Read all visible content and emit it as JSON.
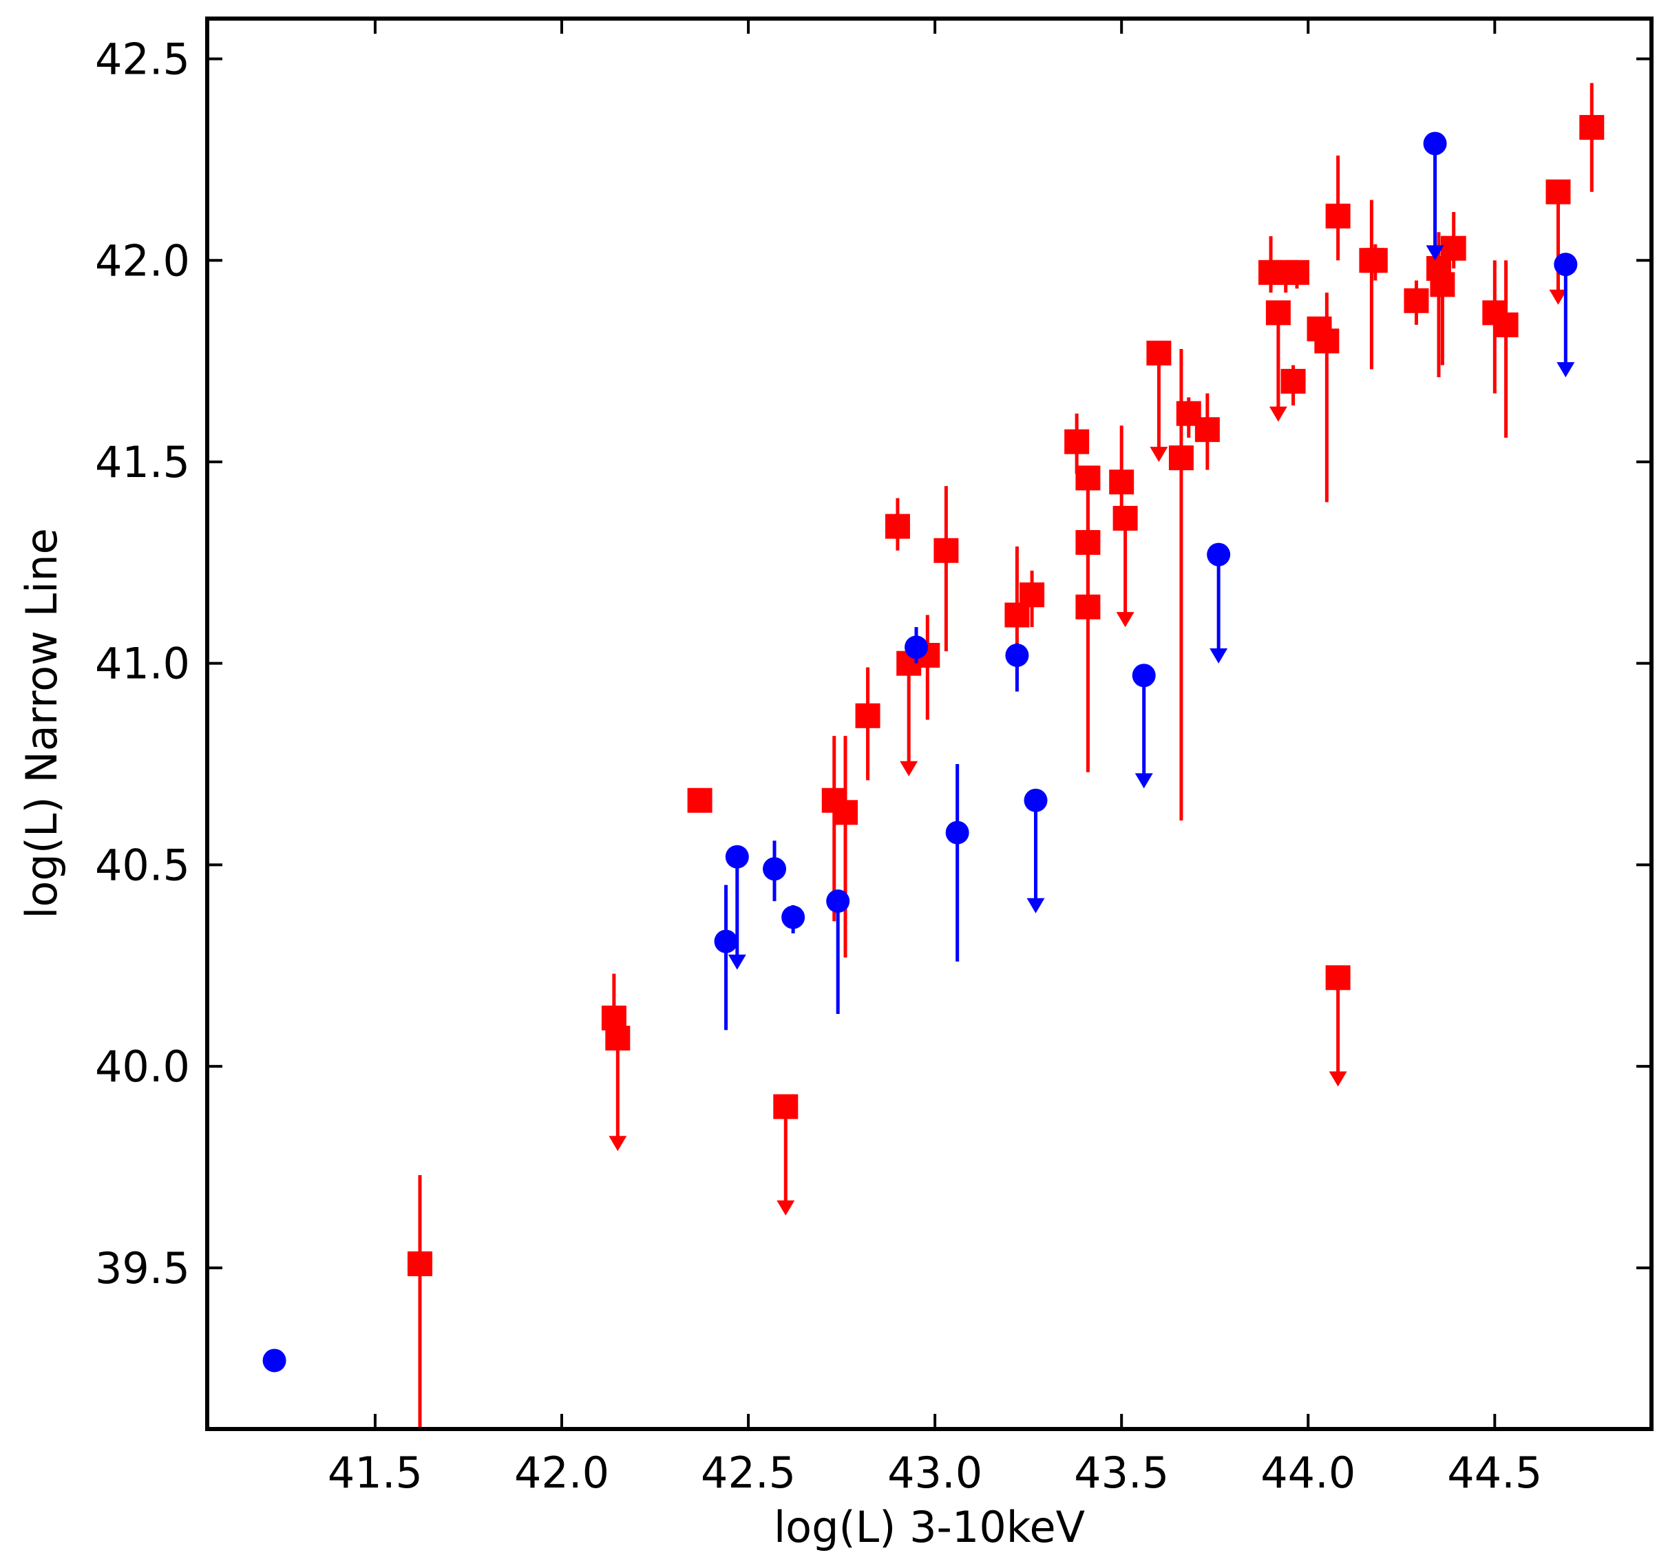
{
  "chart_data": {
    "type": "scatter",
    "title": "",
    "xlabel": "log(L) 3-10keV",
    "ylabel": "log(L) Narrow Line",
    "xlim": [
      41.05,
      44.92
    ],
    "ylim": [
      39.1,
      42.6
    ],
    "xticks": [
      41.5,
      42.0,
      42.5,
      43.0,
      43.5,
      44.0,
      44.5
    ],
    "yticks": [
      39.5,
      40.0,
      40.5,
      41.0,
      41.5,
      42.0,
      42.5
    ],
    "xtick_labels": [
      "41.5",
      "42.0",
      "42.5",
      "43.0",
      "43.5",
      "44.0",
      "44.5"
    ],
    "ytick_labels": [
      "39.5",
      "40.0",
      "40.5",
      "41.0",
      "41.5",
      "42.0",
      "42.5"
    ],
    "grid": false,
    "legend": "none",
    "series": [
      {
        "marker": "square",
        "color": "#ff0000",
        "points": [
          {
            "x": 41.62,
            "y": 39.51,
            "lo": 39.1,
            "hi": 39.73
          },
          {
            "x": 42.14,
            "y": 40.12,
            "hi": 40.23
          },
          {
            "x": 42.15,
            "y": 40.07,
            "limit": "upper",
            "to": 39.8
          },
          {
            "x": 42.37,
            "y": 40.66
          },
          {
            "x": 42.6,
            "y": 39.9,
            "limit": "upper",
            "to": 39.64
          },
          {
            "x": 42.73,
            "y": 40.66,
            "lo": 40.36,
            "hi": 40.82
          },
          {
            "x": 42.76,
            "y": 40.63,
            "lo": 40.27,
            "hi": 40.82
          },
          {
            "x": 42.82,
            "y": 40.87,
            "lo": 40.71,
            "hi": 40.99
          },
          {
            "x": 42.9,
            "y": 41.34,
            "lo": 41.28,
            "hi": 41.41
          },
          {
            "x": 42.93,
            "y": 41.0,
            "limit": "upper",
            "to": 40.73
          },
          {
            "x": 42.98,
            "y": 41.02,
            "lo": 40.86,
            "hi": 41.12
          },
          {
            "x": 43.03,
            "y": 41.28,
            "lo": 41.03,
            "hi": 41.44
          },
          {
            "x": 43.22,
            "y": 41.12,
            "lo": 40.96,
            "hi": 41.29
          },
          {
            "x": 43.26,
            "y": 41.17,
            "lo": 41.09,
            "hi": 41.23
          },
          {
            "x": 43.38,
            "y": 41.55,
            "lo": 41.47,
            "hi": 41.62
          },
          {
            "x": 43.41,
            "y": 41.46,
            "lo": 41.3,
            "hi": 41.49
          },
          {
            "x": 43.41,
            "y": 41.3,
            "lo": 41.14,
            "hi": 41.45
          },
          {
            "x": 43.41,
            "y": 41.14,
            "lo": 40.73,
            "hi": 41.29
          },
          {
            "x": 43.5,
            "y": 41.45,
            "lo": 41.35,
            "hi": 41.59
          },
          {
            "x": 43.51,
            "y": 41.36,
            "limit": "upper",
            "to": 41.1
          },
          {
            "x": 43.6,
            "y": 41.77,
            "limit": "upper",
            "to": 41.51
          },
          {
            "x": 43.66,
            "y": 41.51,
            "lo": 40.61,
            "hi": 41.78
          },
          {
            "x": 43.68,
            "y": 41.62,
            "lo": 41.56,
            "hi": 41.66
          },
          {
            "x": 43.73,
            "y": 41.58,
            "lo": 41.48,
            "hi": 41.67
          },
          {
            "x": 43.9,
            "y": 41.97,
            "lo": 41.92,
            "hi": 42.06
          },
          {
            "x": 43.92,
            "y": 41.87,
            "limit": "upper",
            "to": 41.61
          },
          {
            "x": 43.94,
            "y": 41.97,
            "lo": 41.92,
            "hi": 41.98
          },
          {
            "x": 43.96,
            "y": 41.7,
            "lo": 41.64,
            "hi": 41.74
          },
          {
            "x": 43.97,
            "y": 41.97,
            "lo": 41.93,
            "hi": 42.0
          },
          {
            "x": 44.03,
            "y": 41.83,
            "lo": 41.79,
            "hi": 41.86
          },
          {
            "x": 44.05,
            "y": 41.8,
            "lo": 41.4,
            "hi": 41.92
          },
          {
            "x": 44.08,
            "y": 42.11,
            "lo": 42.0,
            "hi": 42.26
          },
          {
            "x": 44.08,
            "y": 40.22,
            "limit": "upper",
            "to": 39.96
          },
          {
            "x": 44.17,
            "y": 42.0,
            "lo": 41.73,
            "hi": 42.15
          },
          {
            "x": 44.18,
            "y": 42.0,
            "lo": 41.95,
            "hi": 42.04
          },
          {
            "x": 44.29,
            "y": 41.9,
            "lo": 41.84,
            "hi": 41.95
          },
          {
            "x": 44.35,
            "y": 41.98,
            "lo": 41.71,
            "hi": 42.07
          },
          {
            "x": 44.36,
            "y": 41.94,
            "lo": 41.74,
            "hi": 42.06
          },
          {
            "x": 44.39,
            "y": 42.03,
            "lo": 41.98,
            "hi": 42.12
          },
          {
            "x": 44.5,
            "y": 41.87,
            "lo": 41.67,
            "hi": 42.0
          },
          {
            "x": 44.53,
            "y": 41.84,
            "lo": 41.56,
            "hi": 42.0
          },
          {
            "x": 44.67,
            "y": 42.17,
            "limit": "upper",
            "to": 41.9
          },
          {
            "x": 44.76,
            "y": 42.33,
            "lo": 42.17,
            "hi": 42.44
          }
        ]
      },
      {
        "marker": "circle",
        "color": "#0000ff",
        "points": [
          {
            "x": 41.23,
            "y": 39.27
          },
          {
            "x": 42.44,
            "y": 40.31,
            "lo": 40.09,
            "hi": 40.45
          },
          {
            "x": 42.47,
            "y": 40.52,
            "limit": "upper",
            "to": 40.25
          },
          {
            "x": 42.57,
            "y": 40.49,
            "lo": 40.41,
            "hi": 40.56
          },
          {
            "x": 42.62,
            "y": 40.37,
            "lo": 40.33,
            "hi": 40.4
          },
          {
            "x": 42.74,
            "y": 40.41,
            "lo": 40.13,
            "hi": 40.43
          },
          {
            "x": 42.95,
            "y": 41.04,
            "lo": 41.0,
            "hi": 41.09
          },
          {
            "x": 43.06,
            "y": 40.58,
            "lo": 40.26,
            "hi": 40.75
          },
          {
            "x": 43.22,
            "y": 41.02,
            "lo": 40.93,
            "hi": 41.05
          },
          {
            "x": 43.27,
            "y": 40.66,
            "limit": "upper",
            "to": 40.39
          },
          {
            "x": 43.56,
            "y": 40.97,
            "limit": "upper",
            "to": 40.7
          },
          {
            "x": 43.76,
            "y": 41.27,
            "limit": "upper",
            "to": 41.01
          },
          {
            "x": 44.34,
            "y": 42.29,
            "limit": "upper",
            "to": 42.01
          },
          {
            "x": 44.69,
            "y": 41.99,
            "limit": "upper",
            "to": 41.72
          }
        ]
      }
    ]
  }
}
